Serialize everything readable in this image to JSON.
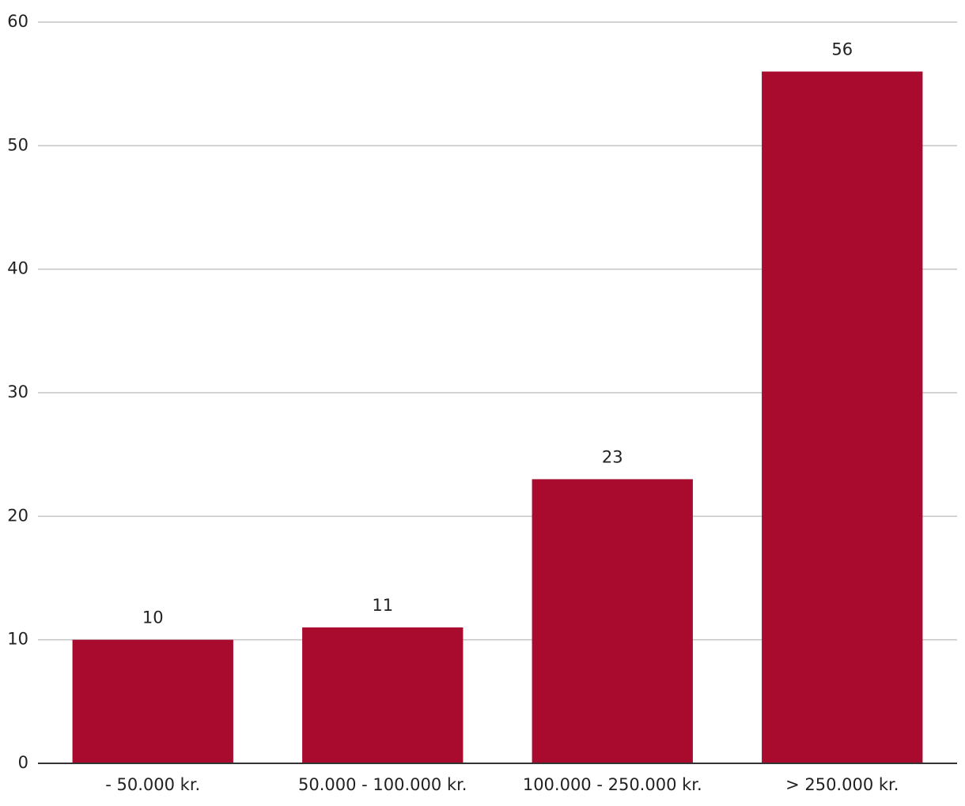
{
  "chart_data": {
    "type": "bar",
    "categories": [
      "- 50.000 kr.",
      "50.000 - 100.000 kr.",
      "100.000 - 250.000 kr.",
      "> 250.000 kr."
    ],
    "values": [
      10,
      11,
      23,
      56
    ],
    "color": "#a90b2f",
    "ylim": [
      0,
      60
    ],
    "yticks": [
      0,
      10,
      20,
      30,
      40,
      50,
      60
    ],
    "grid": true,
    "data_labels": true
  }
}
